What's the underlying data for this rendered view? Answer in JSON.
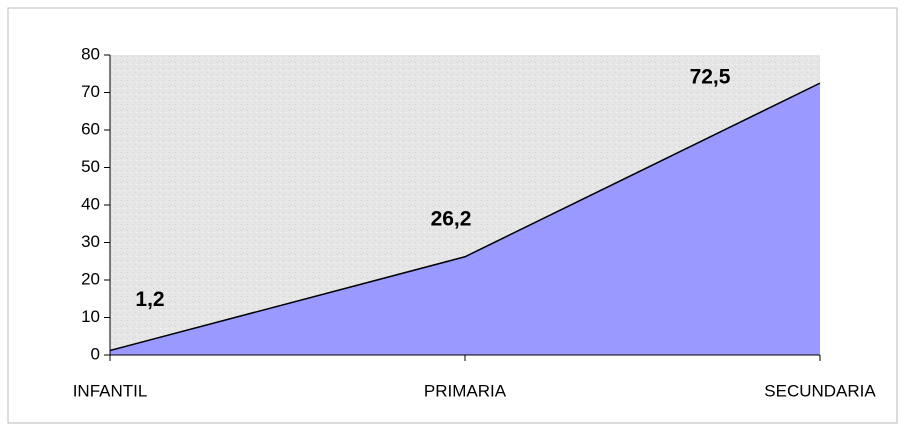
{
  "chart_data": {
    "type": "area",
    "categories": [
      "INFANTIL",
      "PRIMARIA",
      "SECUNDARIA"
    ],
    "values": [
      1.2,
      26.2,
      72.5
    ],
    "value_labels": [
      "1,2",
      "26,2",
      "72,5"
    ],
    "color": "#9999ff",
    "ylim": [
      0,
      80
    ],
    "yticks": [
      0,
      10,
      20,
      30,
      40,
      50,
      60,
      70,
      80
    ]
  }
}
